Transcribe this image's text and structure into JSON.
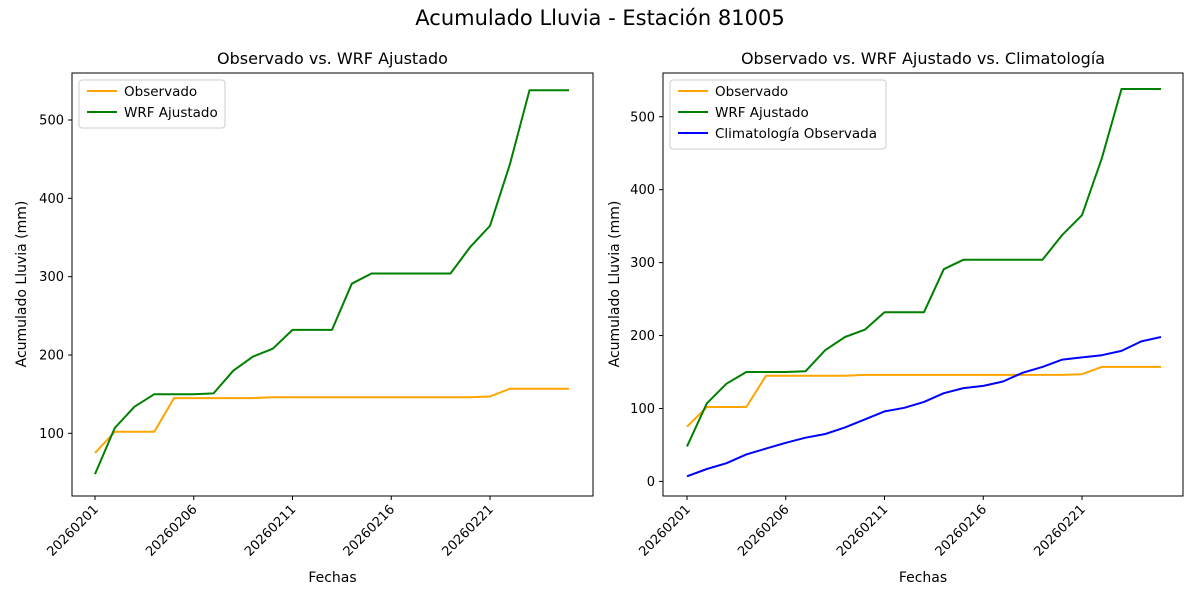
{
  "figure": {
    "suptitle": "Acumulado Lluvia - Estación 81005"
  },
  "colors": {
    "observado": "#ffa500",
    "wrf": "#008000",
    "climatologia": "#0000ff",
    "axis": "#000000",
    "legend_border": "#cccccc"
  },
  "chart_data": [
    {
      "type": "line",
      "title": "Observado vs. WRF Ajustado",
      "xlabel": "Fechas",
      "ylabel": "Acumulado Lluvia (mm)",
      "x": [
        "20260201",
        "20260202",
        "20260203",
        "20260204",
        "20260205",
        "20260206",
        "20260207",
        "20260208",
        "20260209",
        "20260210",
        "20260211",
        "20260212",
        "20260213",
        "20260214",
        "20260215",
        "20260216",
        "20260217",
        "20260218",
        "20260219",
        "20260220",
        "20260221",
        "20260222",
        "20260223",
        "20260224",
        "20260225"
      ],
      "xticks": [
        "20260201",
        "20260206",
        "20260211",
        "20260216",
        "20260221"
      ],
      "yticks": [
        100,
        200,
        300,
        400,
        500
      ],
      "ylim": [
        20,
        560
      ],
      "legend": "upper-left",
      "grid": false,
      "series": [
        {
          "name": "Observado",
          "color_key": "observado",
          "values": [
            75,
            102,
            102,
            102,
            145,
            145,
            145,
            145,
            145,
            146,
            146,
            146,
            146,
            146,
            146,
            146,
            146,
            146,
            146,
            146,
            147,
            157,
            157,
            157,
            157
          ]
        },
        {
          "name": "WRF Ajustado",
          "color_key": "wrf",
          "values": [
            48,
            107,
            134,
            150,
            150,
            150,
            151,
            180,
            198,
            208,
            232,
            232,
            232,
            291,
            304,
            304,
            304,
            304,
            304,
            338,
            365,
            443,
            538,
            538,
            538
          ]
        }
      ]
    },
    {
      "type": "line",
      "title": "Observado vs. WRF Ajustado vs. Climatología",
      "xlabel": "Fechas",
      "ylabel": "Acumulado Lluvia (mm)",
      "x": [
        "20260201",
        "20260202",
        "20260203",
        "20260204",
        "20260205",
        "20260206",
        "20260207",
        "20260208",
        "20260209",
        "20260210",
        "20260211",
        "20260212",
        "20260213",
        "20260214",
        "20260215",
        "20260216",
        "20260217",
        "20260218",
        "20260219",
        "20260220",
        "20260221",
        "20260222",
        "20260223",
        "20260224",
        "20260225"
      ],
      "xticks": [
        "20260201",
        "20260206",
        "20260211",
        "20260216",
        "20260221"
      ],
      "yticks": [
        0,
        100,
        200,
        300,
        400,
        500
      ],
      "ylim": [
        -20,
        560
      ],
      "legend": "upper-left",
      "grid": false,
      "series": [
        {
          "name": "Observado",
          "color_key": "observado",
          "values": [
            75,
            102,
            102,
            102,
            145,
            145,
            145,
            145,
            145,
            146,
            146,
            146,
            146,
            146,
            146,
            146,
            146,
            146,
            146,
            146,
            147,
            157,
            157,
            157,
            157
          ]
        },
        {
          "name": "WRF Ajustado",
          "color_key": "wrf",
          "values": [
            48,
            107,
            134,
            150,
            150,
            150,
            151,
            180,
            198,
            208,
            232,
            232,
            232,
            291,
            304,
            304,
            304,
            304,
            304,
            338,
            365,
            443,
            538,
            538,
            538
          ]
        },
        {
          "name": "Climatología Observada",
          "color_key": "climatologia",
          "values": [
            7,
            17,
            25,
            37,
            45,
            53,
            60,
            65,
            74,
            85,
            96,
            101,
            109,
            121,
            128,
            131,
            137,
            149,
            157,
            167,
            170,
            173,
            179,
            192,
            198
          ]
        }
      ]
    }
  ]
}
